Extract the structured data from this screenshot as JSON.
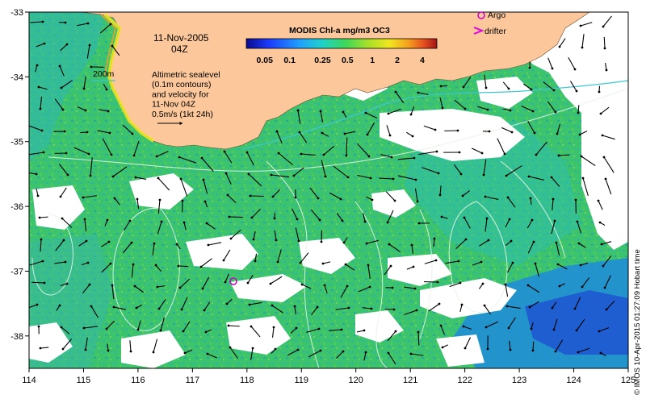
{
  "map": {
    "date": "11-Nov-2005",
    "time": "04Z",
    "colorbar_title": "MODIS Chl-a mg/m3 OC3",
    "colorbar_ticks": [
      "0.05",
      "0.1",
      "0.25",
      "0.5",
      "1",
      "2",
      "4"
    ],
    "colorbar_colors": [
      "#0a0a8c",
      "#1c3cff",
      "#1fa0ff",
      "#1fd2c8",
      "#3cd75a",
      "#a8e028",
      "#f0e61e",
      "#f5a01e",
      "#e6501e",
      "#a01414"
    ],
    "legend": {
      "argo": "Argo",
      "drifter": "drifter",
      "argo_color": "#c800c8",
      "drifter_color": "#e000e0"
    },
    "isobath_label": "200m",
    "annotation_lines": [
      "Altimetric sealevel",
      "(0.1m contours)",
      "and velocity for",
      "11-Nov 04Z",
      "0.5m/s (1kt 24h)"
    ],
    "credit": "© IMOS 10-Apr-2015 01:27:09 Hobart time",
    "x_ticks": [
      "114",
      "115",
      "116",
      "117",
      "118",
      "119",
      "120",
      "121",
      "122",
      "123",
      "124",
      "125"
    ],
    "y_ticks": [
      "-33",
      "-34",
      "-35",
      "-36",
      "-37",
      "-38"
    ],
    "colors": {
      "land": "#fcc89b",
      "ocean_base": "#3cc36e",
      "cloud": "#ffffff",
      "contour": "#e6f5e6",
      "isobath": "#3cc8d2"
    },
    "extent": {
      "lon": [
        114,
        125
      ],
      "lat": [
        -38.5,
        -33
      ]
    }
  }
}
